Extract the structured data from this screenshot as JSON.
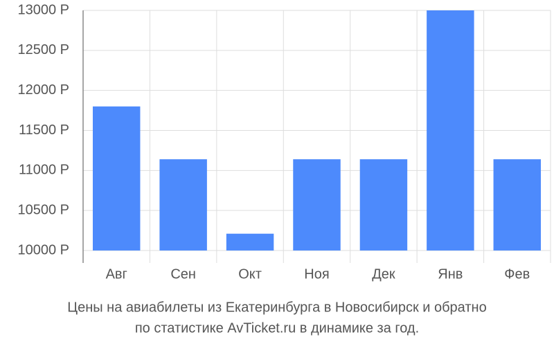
{
  "chart_data": {
    "type": "bar",
    "caption": [
      "Цены на авиабилеты из Екатеринбурга в Новосибирск и обратно",
      "по статистике AvTicket.ru в динамике за год."
    ],
    "categories": [
      "Авг",
      "Сен",
      "Окт",
      "Ноя",
      "Дек",
      "Янв",
      "Фев"
    ],
    "values": [
      11800,
      11140,
      10210,
      11140,
      11140,
      13000,
      11140
    ],
    "color": "#4d8afc",
    "ylim": [
      10000,
      13000
    ],
    "yticks": [
      {
        "value": 10000,
        "label": "10000 Р"
      },
      {
        "value": 10500,
        "label": "10500 Р"
      },
      {
        "value": 11000,
        "label": "11000 Р"
      },
      {
        "value": 11500,
        "label": "11500 Р"
      },
      {
        "value": 12000,
        "label": "12000 Р"
      },
      {
        "value": 12500,
        "label": "12500 Р"
      },
      {
        "value": 13000,
        "label": "13000 Р"
      }
    ],
    "grid": true
  }
}
